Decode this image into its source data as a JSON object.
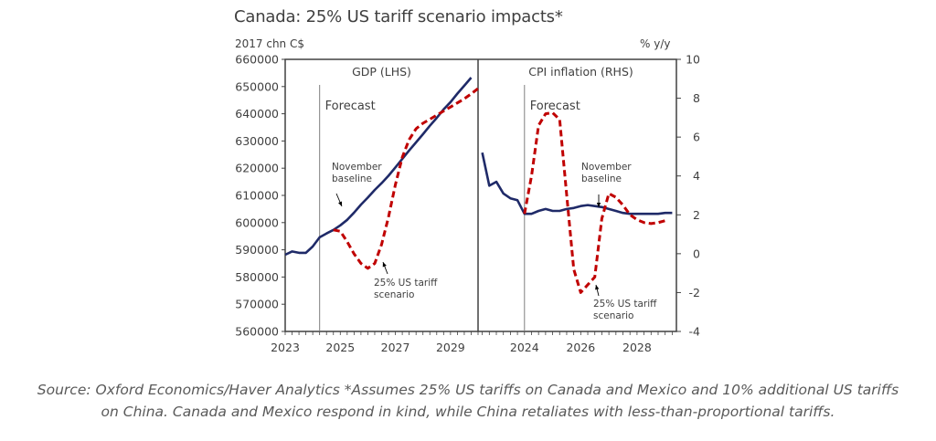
{
  "chart_data": {
    "type": "line",
    "title": "Canada: 25% US tariff scenario impacts*",
    "left_axis_label": "2017 chn C$",
    "right_axis_label": "% y/y",
    "panels": [
      {
        "name": "GDP (LHS)",
        "axis": "left",
        "ylim": [
          560000,
          660000
        ],
        "yticks": [
          "660000",
          "650000",
          "640000",
          "630000",
          "620000",
          "610000",
          "600000",
          "590000",
          "580000",
          "570000",
          "560000"
        ],
        "ytick_values": [
          660000,
          650000,
          640000,
          630000,
          620000,
          610000,
          600000,
          590000,
          580000,
          570000,
          560000
        ],
        "xlim": [
          2023.0,
          2030.0
        ],
        "xtick_labels": [
          "2023",
          "2025",
          "2027",
          "2029"
        ],
        "xtick_values": [
          2023,
          2025,
          2027,
          2029
        ],
        "forecast_start": 2024.25,
        "forecast_label": "Forecast",
        "x_start": 2023.0,
        "x_step": 0.25,
        "series": [
          {
            "name": "November baseline",
            "style": "solid",
            "color": "#1F2A68",
            "start_index": 0,
            "values": [
              588200,
              589400,
              588900,
              588900,
              591200,
              594600,
              596000,
              597300,
              599000,
              601000,
              603700,
              606600,
              609200,
              612000,
              614500,
              617200,
              620300,
              623400,
              626500,
              629500,
              632500,
              635600,
              638500,
              641600,
              644300,
              647400,
              650300,
              653300
            ]
          },
          {
            "name": "25% US tariff scenario",
            "style": "dashed",
            "color": "#C00000",
            "start_index": 7,
            "values": [
              597300,
              596800,
              593000,
              588500,
              585000,
              583200,
              585000,
              592000,
              602000,
              614000,
              624000,
              630500,
              634500,
              636500,
              638000,
              639500,
              641000,
              642500,
              644000,
              645500,
              647300,
              649300
            ]
          }
        ],
        "annotations": [
          {
            "text": [
              "November",
              "baseline"
            ],
            "target": "November baseline"
          },
          {
            "text": [
              "25% US tariff",
              "scenario"
            ],
            "target": "25% US tariff scenario"
          }
        ]
      },
      {
        "name": "CPI inflation  (RHS)",
        "axis": "right",
        "ylim": [
          -4,
          10
        ],
        "yticks": [
          "10",
          "8",
          "6",
          "4",
          "2",
          "0",
          "-2",
          "-4"
        ],
        "ytick_values": [
          10,
          8,
          6,
          4,
          2,
          0,
          -2,
          -4
        ],
        "xlim": [
          2022.35,
          2029.4
        ],
        "xtick_labels": [
          "2024",
          "2026",
          "2028"
        ],
        "xtick_values": [
          2024,
          2026,
          2028
        ],
        "forecast_start": 2024.0,
        "forecast_label": "Forecast",
        "x_start": 2022.5,
        "x_step": 0.25,
        "series": [
          {
            "name": "November baseline",
            "style": "solid",
            "color": "#1F2A68",
            "start_index": 0,
            "values": [
              5.2,
              3.5,
              3.7,
              3.1,
              2.85,
              2.75,
              2.05,
              2.05,
              2.2,
              2.3,
              2.2,
              2.2,
              2.3,
              2.35,
              2.45,
              2.5,
              2.45,
              2.4,
              2.3,
              2.2,
              2.1,
              2.05,
              2.05,
              2.05,
              2.05,
              2.05,
              2.1,
              2.1
            ]
          },
          {
            "name": "25% US tariff scenario",
            "style": "dashed",
            "color": "#C00000",
            "start_index": 6,
            "values": [
              2.05,
              4.0,
              6.6,
              7.2,
              7.25,
              6.9,
              3.0,
              -0.8,
              -2.0,
              -1.6,
              -1.2,
              1.8,
              3.1,
              2.9,
              2.5,
              2.0,
              1.75,
              1.6,
              1.55,
              1.6,
              1.7
            ]
          }
        ],
        "annotations": [
          {
            "text": [
              "November",
              "baseline"
            ],
            "target": "November baseline"
          },
          {
            "text": [
              "25% US tariff",
              "scenario"
            ],
            "target": "25% US tariff scenario"
          }
        ]
      }
    ],
    "grid": false,
    "legend": "none"
  },
  "source": {
    "line1": "Source: Oxford Economics/Haver Analytics *Assumes 25% US tariffs on Canada and Mexico and 10% additional US tariffs",
    "line2": "on China. Canada and Mexico respond in kind, while China retaliates with less-than-proportional tariffs."
  }
}
